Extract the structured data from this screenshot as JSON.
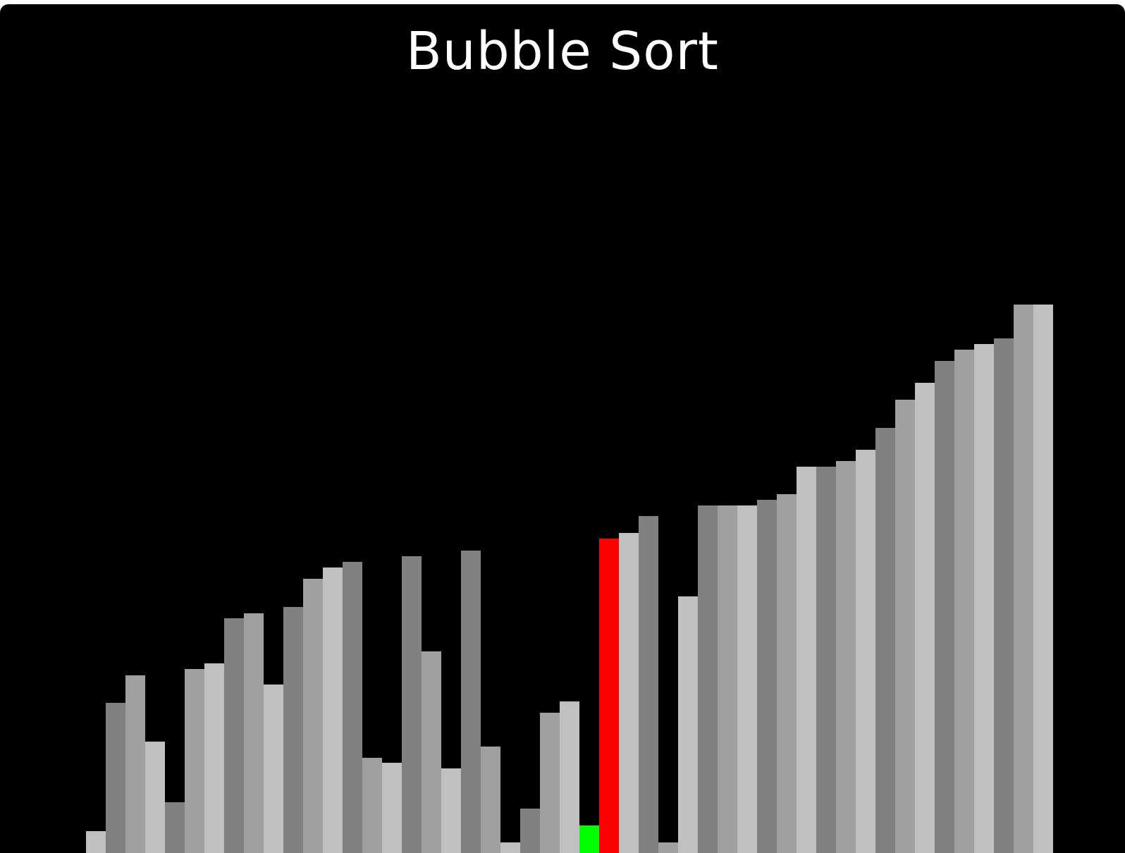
{
  "title": "Bubble Sort",
  "colors": {
    "background": "#000000",
    "title_text": "#ffffff",
    "shades": [
      "#c0c0c0",
      "#808080",
      "#a0a0a0"
    ],
    "compare": "#ff0000",
    "current": "#00ff00"
  },
  "chart_data": {
    "type": "bar",
    "ylim": [
      0,
      1200
    ],
    "values": [
      31,
      213,
      252,
      158,
      72,
      261,
      269,
      333,
      340,
      239,
      349,
      389,
      405,
      413,
      135,
      128,
      421,
      286,
      120,
      429,
      151,
      15,
      63,
      199,
      215,
      39,
      446,
      454,
      478,
      15,
      364,
      493,
      493,
      493,
      501,
      509,
      548,
      548,
      556,
      572,
      603,
      643,
      667,
      698,
      714,
      722,
      730,
      778,
      778
    ],
    "states": [
      "",
      "",
      "",
      "",
      "",
      "",
      "",
      "",
      "",
      "",
      "",
      "",
      "",
      "",
      "",
      "",
      "",
      "",
      "",
      "",
      "",
      "",
      "",
      "",
      "",
      "current",
      "compare",
      "",
      "",
      "",
      "",
      "",
      "",
      "",
      "",
      "",
      "",
      "",
      "",
      "",
      "",
      "",
      "",
      "",
      "",
      "",
      "",
      "",
      ""
    ]
  }
}
